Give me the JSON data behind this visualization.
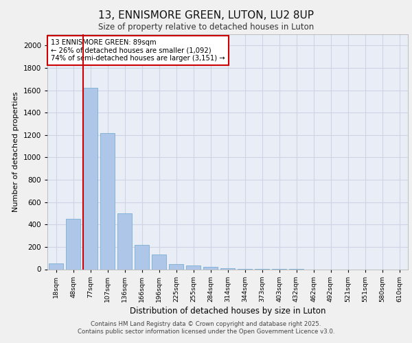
{
  "title1": "13, ENNISMORE GREEN, LUTON, LU2 8UP",
  "title2": "Size of property relative to detached houses in Luton",
  "xlabel": "Distribution of detached houses by size in Luton",
  "ylabel": "Number of detached properties",
  "categories": [
    "18sqm",
    "48sqm",
    "77sqm",
    "107sqm",
    "136sqm",
    "166sqm",
    "196sqm",
    "225sqm",
    "255sqm",
    "284sqm",
    "314sqm",
    "344sqm",
    "373sqm",
    "403sqm",
    "432sqm",
    "462sqm",
    "492sqm",
    "521sqm",
    "551sqm",
    "580sqm",
    "610sqm"
  ],
  "values": [
    50,
    450,
    1620,
    1220,
    500,
    220,
    130,
    45,
    35,
    20,
    10,
    4,
    2,
    1,
    1,
    0,
    0,
    0,
    0,
    0,
    0
  ],
  "bar_color": "#aec6e8",
  "bar_edge_color": "#7aafd4",
  "red_line_index": 2,
  "red_line_color": "#cc0000",
  "annotation_text": "13 ENNISMORE GREEN: 89sqm\n← 26% of detached houses are smaller (1,092)\n74% of semi-detached houses are larger (3,151) →",
  "annotation_box_color": "#ffffff",
  "annotation_box_edge": "#cc0000",
  "ylim": [
    0,
    2100
  ],
  "yticks": [
    0,
    200,
    400,
    600,
    800,
    1000,
    1200,
    1400,
    1600,
    1800,
    2000
  ],
  "grid_color": "#cdd5e5",
  "bg_color": "#e8edf6",
  "footer_line1": "Contains HM Land Registry data © Crown copyright and database right 2025.",
  "footer_line2": "Contains public sector information licensed under the Open Government Licence v3.0."
}
